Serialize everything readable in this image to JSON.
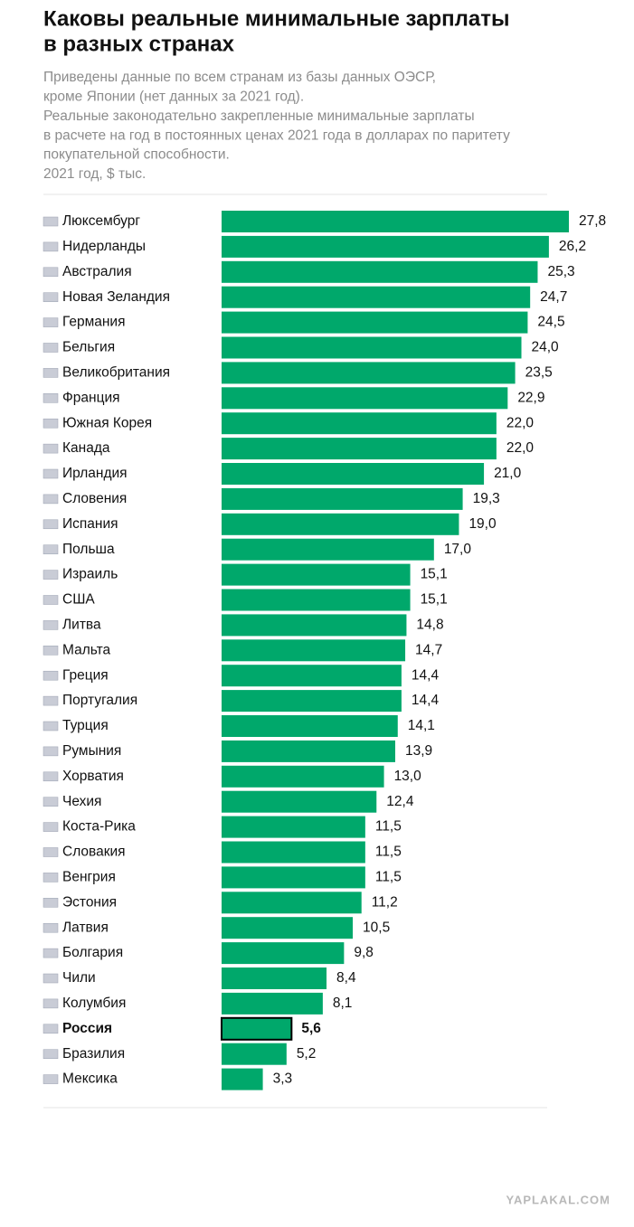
{
  "chart_data": {
    "type": "bar",
    "orientation": "horizontal",
    "title": [
      "Каковы реальные минимальные зарплаты",
      "в разных странах"
    ],
    "subtitle": [
      "Приведены данные по всем странам из базы данных ОЭСР,",
      "кроме Японии (нет данных за 2021 год).",
      "Реальные законодательно закрепленные минимальные зарплаты",
      "в расчете на год в постоянных ценах 2021 года в долларах по паритету",
      "покупательной способности.",
      "2021 год, $ тыс."
    ],
    "categories": [
      "Люксембург",
      "Нидерланды",
      "Австралия",
      "Новая Зеландия",
      "Германия",
      "Бельгия",
      "Великобритания",
      "Франция",
      "Южная Корея",
      "Канада",
      "Ирландия",
      "Словения",
      "Испания",
      "Польша",
      "Израиль",
      "США",
      "Литва",
      "Мальта",
      "Греция",
      "Португалия",
      "Турция",
      "Румыния",
      "Хорватия",
      "Чехия",
      "Коста-Рика",
      "Словакия",
      "Венгрия",
      "Эстония",
      "Латвия",
      "Болгария",
      "Чили",
      "Колумбия",
      "Россия",
      "Бразилия",
      "Мексика"
    ],
    "values": [
      27.8,
      26.2,
      25.3,
      24.7,
      24.5,
      24.0,
      23.5,
      22.9,
      22.0,
      22.0,
      21.0,
      19.3,
      19.0,
      17.0,
      15.1,
      15.1,
      14.8,
      14.7,
      14.4,
      14.4,
      14.1,
      13.9,
      13.0,
      12.4,
      11.5,
      11.5,
      11.5,
      11.2,
      10.5,
      9.8,
      8.4,
      8.1,
      5.6,
      5.2,
      3.3
    ],
    "value_labels": [
      "27,8",
      "26,2",
      "25,3",
      "24,7",
      "24,5",
      "24,0",
      "23,5",
      "22,9",
      "22,0",
      "22,0",
      "21,0",
      "19,3",
      "19,0",
      "17,0",
      "15,1",
      "15,1",
      "14,8",
      "14,7",
      "14,4",
      "14,4",
      "14,1",
      "13,9",
      "13,0",
      "12,4",
      "11,5",
      "11,5",
      "11,5",
      "11,2",
      "10,5",
      "9,8",
      "8,4",
      "8,1",
      "5,6",
      "5,2",
      "3,3"
    ],
    "color": "#00a86b",
    "highlight_index": 32
  },
  "watermark": "YAPLAKAL.COM"
}
